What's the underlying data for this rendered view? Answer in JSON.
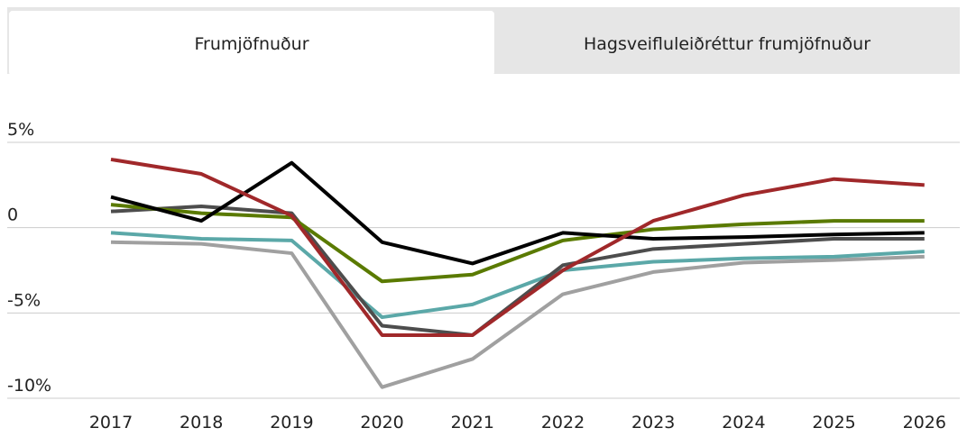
{
  "tabs": [
    "Frumjöfnuður",
    "Hagsveifluleiðréttur frumjöfnuður"
  ],
  "chart_data": {
    "type": "line",
    "categories": [
      "2017",
      "2018",
      "2019",
      "2020",
      "2021",
      "2022",
      "2023",
      "2024",
      "2025",
      "2026"
    ],
    "series": [
      {
        "color": "#a0a0a0",
        "values": [
          -0.85,
          -0.95,
          -1.5,
          -9.35,
          -7.7,
          -3.9,
          -2.6,
          -2.05,
          -1.9,
          -1.7
        ]
      },
      {
        "color": "#5ba8a8",
        "values": [
          -0.3,
          -0.65,
          -0.75,
          -5.25,
          -4.5,
          -2.5,
          -2.0,
          -1.8,
          -1.7,
          -1.4
        ]
      },
      {
        "color": "#4d4d4d",
        "values": [
          0.95,
          1.25,
          0.85,
          -5.75,
          -6.3,
          -2.2,
          -1.25,
          -0.95,
          -0.65,
          -0.65
        ]
      },
      {
        "color": "#5a7a00",
        "values": [
          1.35,
          0.85,
          0.6,
          -3.15,
          -2.75,
          -0.75,
          -0.1,
          0.2,
          0.4,
          0.4
        ]
      },
      {
        "color": "#000000",
        "values": [
          1.8,
          0.4,
          3.8,
          -0.85,
          -2.1,
          -0.3,
          -0.65,
          -0.55,
          -0.4,
          -0.3
        ]
      },
      {
        "color": "#a0282a",
        "values": [
          4.0,
          3.15,
          0.7,
          -6.3,
          -6.3,
          -2.5,
          0.4,
          1.9,
          2.85,
          2.5
        ]
      }
    ],
    "ylim": [
      -10,
      5
    ],
    "yticks": [
      {
        "value": 5,
        "label": "5%"
      },
      0,
      {
        "value": -5,
        "label": "-5%"
      },
      {
        "value": -10,
        "label": "-10%"
      }
    ],
    "grid": true
  }
}
